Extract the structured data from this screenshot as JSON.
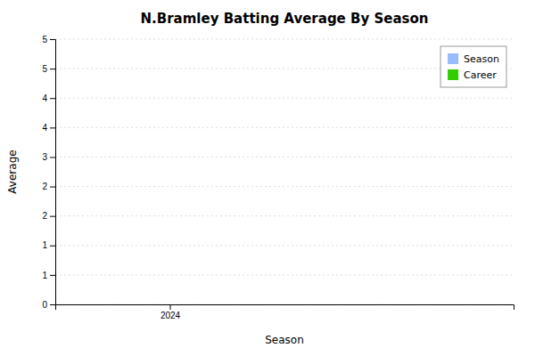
{
  "chart_data": {
    "type": "bar",
    "title": "N.Bramley Batting Average By Season",
    "xlabel": "Season",
    "ylabel": "Average",
    "x": [],
    "series": [
      {
        "name": "Season",
        "color": "#99bbff",
        "values": []
      },
      {
        "name": "Career",
        "color": "#33cc00",
        "values": []
      }
    ],
    "xlim": [
      2023.5,
      2025.5
    ],
    "xticks": [
      2024
    ],
    "ylim": [
      0,
      5.5
    ],
    "yticks": [
      {
        "value": 0,
        "label": "0"
      },
      {
        "value": 0.6111111111111112,
        "label": "1"
      },
      {
        "value": 1.2222222222222223,
        "label": "1"
      },
      {
        "value": 1.8333333333333333,
        "label": "2"
      },
      {
        "value": 2.4444444444444446,
        "label": "2"
      },
      {
        "value": 3.0555555555555554,
        "label": "3"
      },
      {
        "value": 3.6666666666666665,
        "label": "4"
      },
      {
        "value": 4.277777777777778,
        "label": "4"
      },
      {
        "value": 4.888888888888889,
        "label": "5"
      },
      {
        "value": 5.5,
        "label": "5"
      }
    ],
    "grid": true,
    "legend": "upper right"
  }
}
